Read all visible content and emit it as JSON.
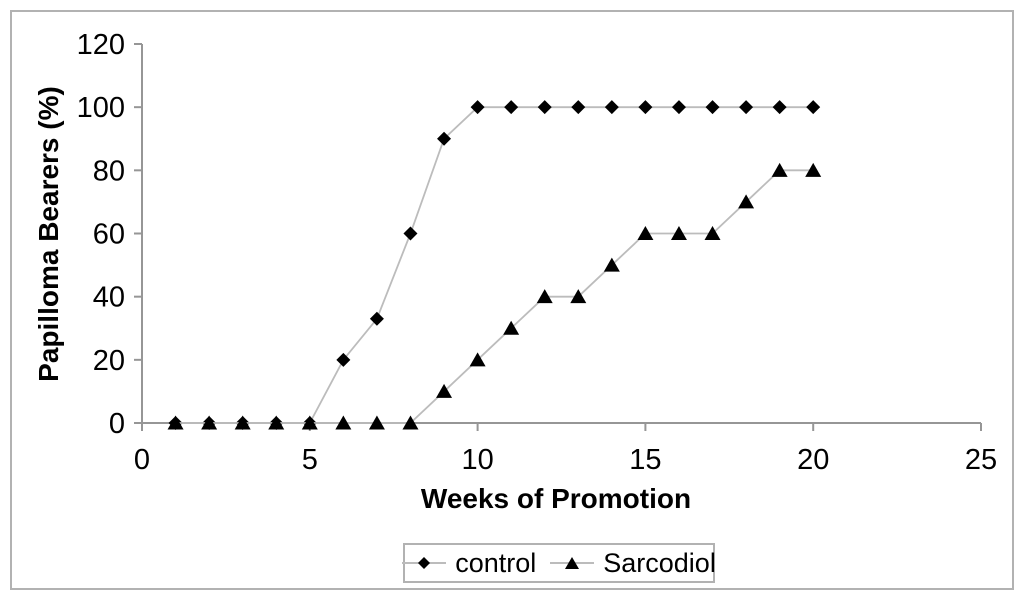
{
  "figure": {
    "background": "#ffffff",
    "frame_color": "#b2b2b2"
  },
  "chart_data": {
    "type": "line",
    "title": "",
    "xlabel": "Weeks of Promotion",
    "ylabel": "Papilloma Bearers (%)",
    "x": [
      1,
      2,
      3,
      4,
      5,
      6,
      7,
      8,
      9,
      10,
      11,
      12,
      13,
      14,
      15,
      16,
      17,
      18,
      19,
      20
    ],
    "series": [
      {
        "name": "control",
        "marker": "diamond",
        "values": [
          0,
          0,
          0,
          0,
          0,
          20,
          33,
          60,
          90,
          100,
          100,
          100,
          100,
          100,
          100,
          100,
          100,
          100,
          100,
          100
        ]
      },
      {
        "name": "Sarcodiol",
        "marker": "triangle",
        "values": [
          0,
          0,
          0,
          0,
          0,
          0,
          0,
          0,
          10,
          20,
          30,
          40,
          40,
          50,
          60,
          60,
          60,
          70,
          80,
          80
        ]
      }
    ],
    "xlim": [
      0,
      25
    ],
    "ylim": [
      0,
      120
    ],
    "xticks": [
      0,
      5,
      10,
      15,
      20,
      25
    ],
    "yticks": [
      0,
      20,
      40,
      60,
      80,
      100,
      120
    ],
    "grid": false,
    "legend_position": "bottom-center",
    "colors": {
      "marker": "#000000",
      "series_line": "#bcbcbc",
      "axis": "#969696",
      "tick_text": "#000000",
      "legend_border": "#b2b2b2"
    }
  }
}
